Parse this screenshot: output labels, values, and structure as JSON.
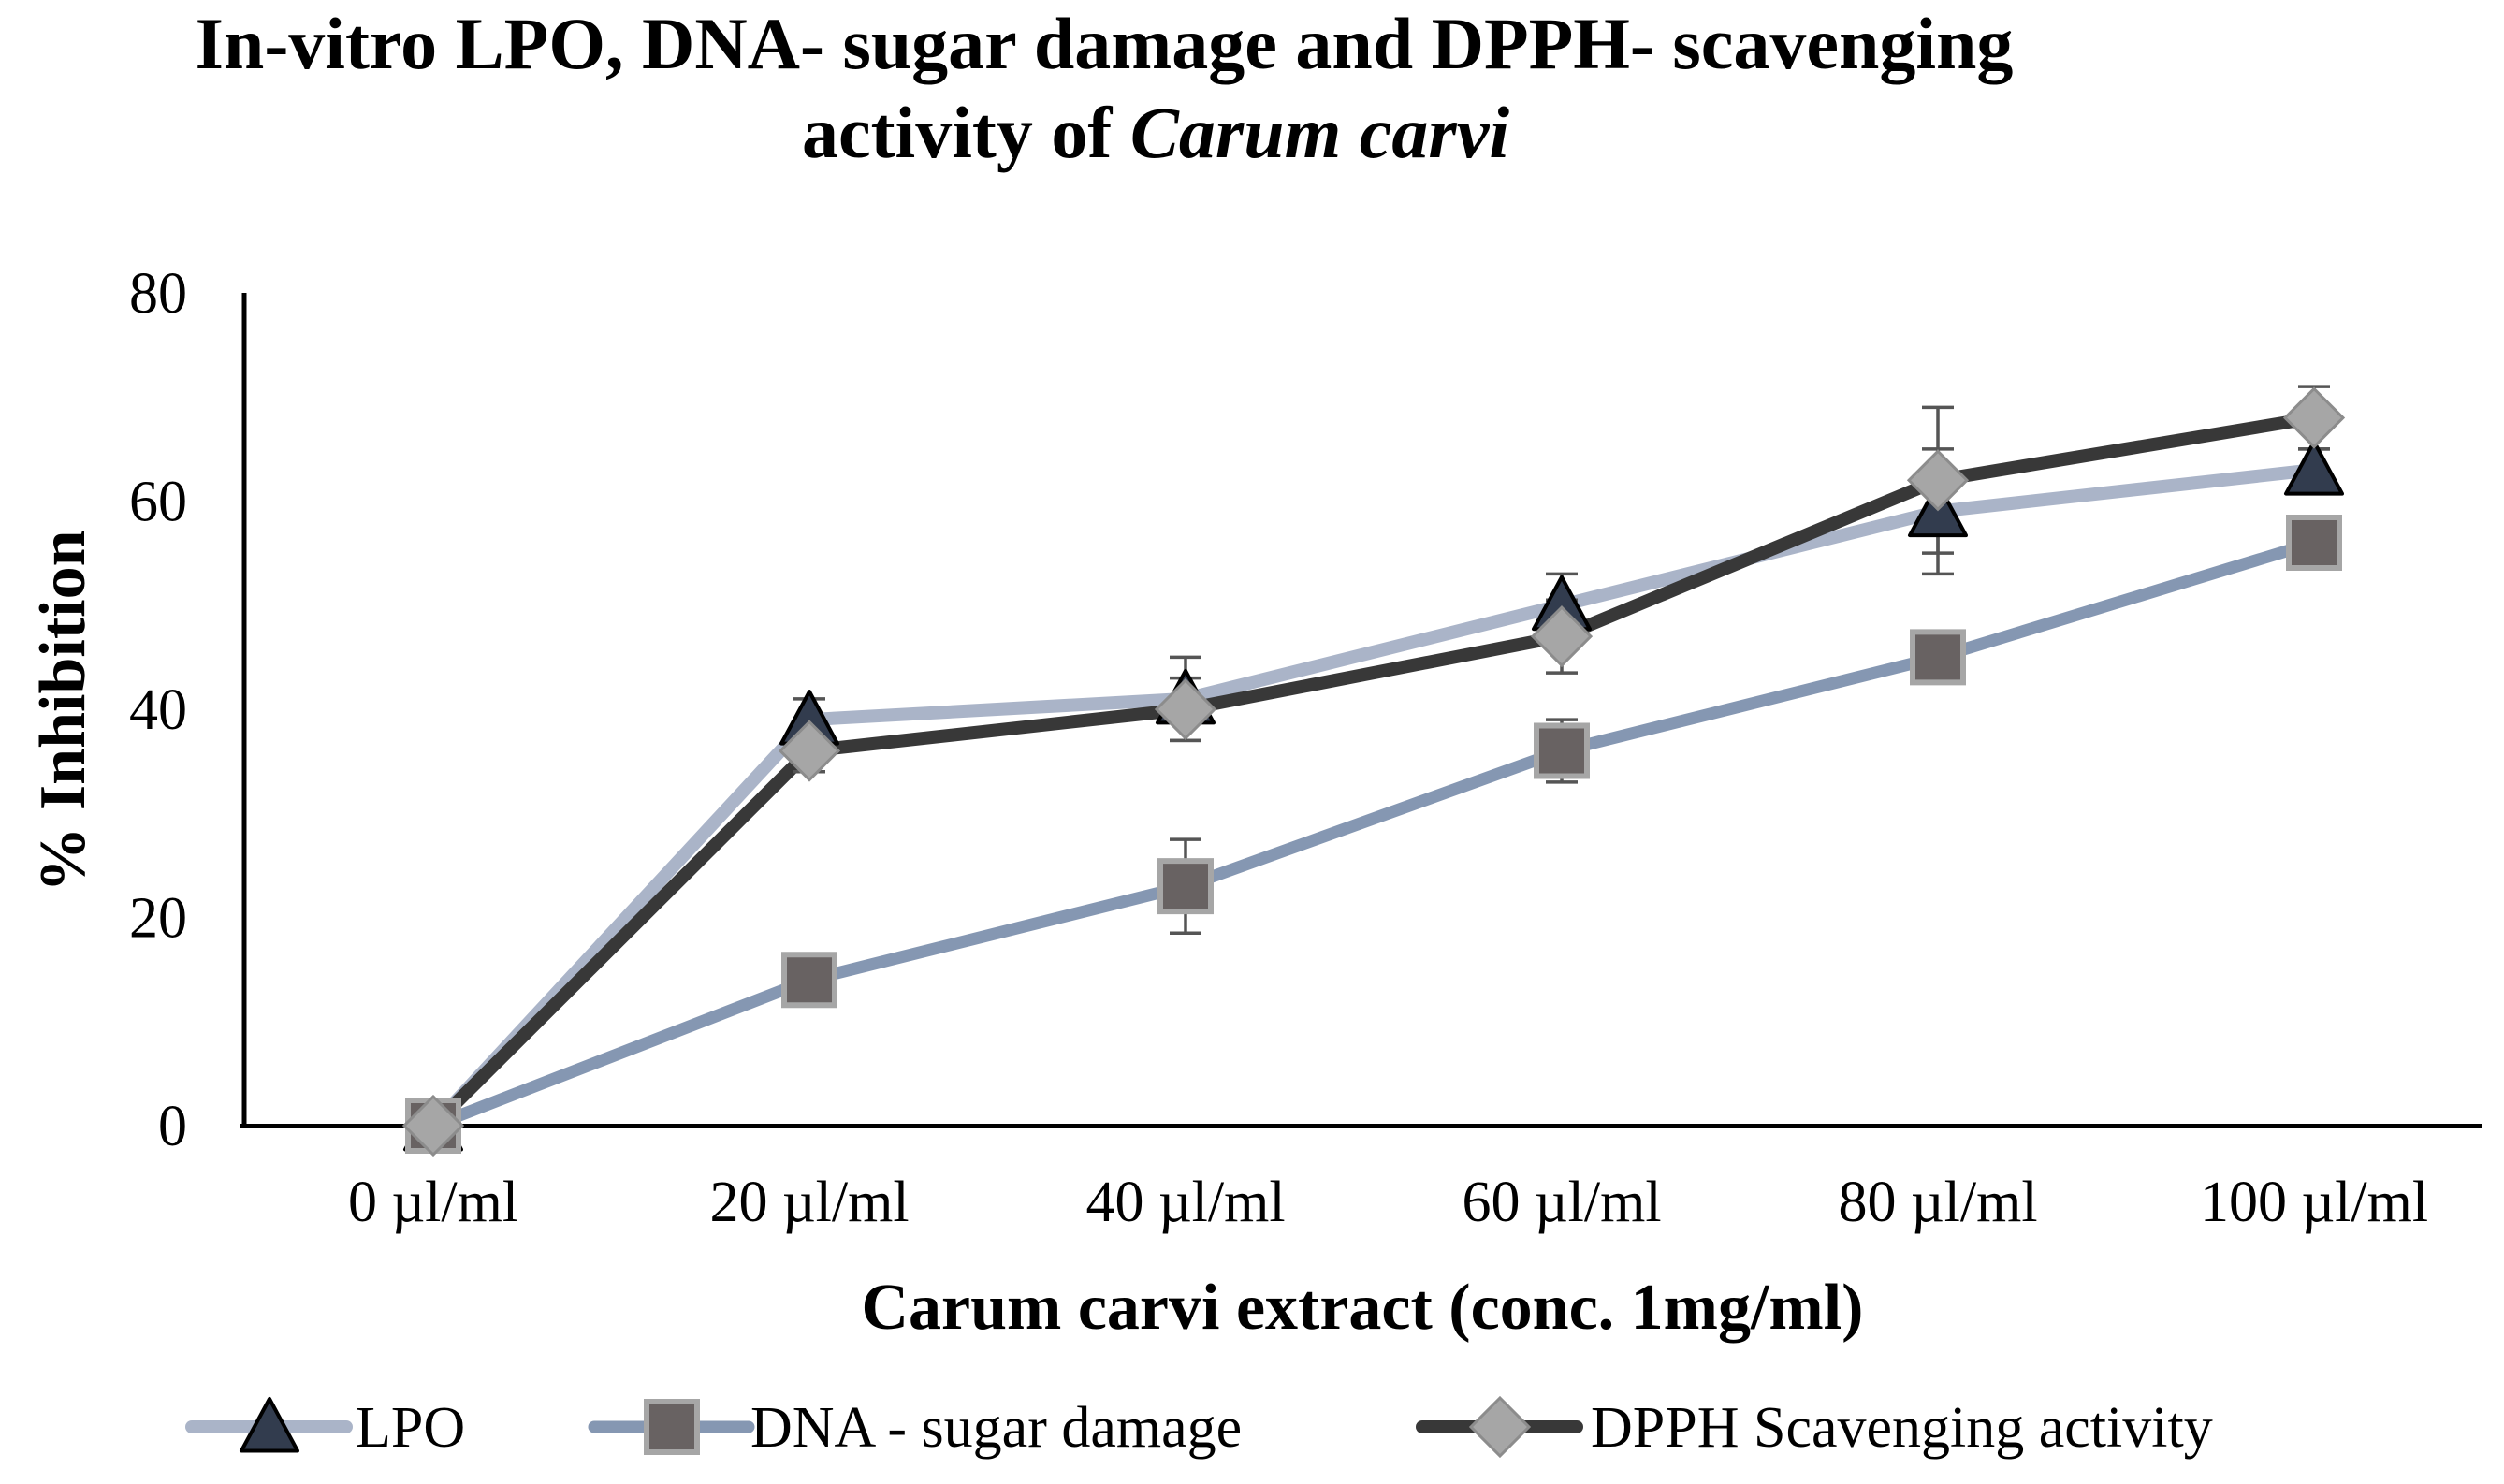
{
  "chart_data": {
    "type": "line",
    "title": {
      "line1": "In-vitro LPO, DNA- sugar damage and DPPH- scavenging",
      "line2_prefix": "activity of ",
      "line2_italic": "Carum carvi"
    },
    "xlabel": "Carum carvi extract (conc. 1mg/ml)",
    "ylabel": "% Inhibition",
    "ylim": [
      0,
      80
    ],
    "yticks": [
      0,
      20,
      40,
      60,
      80
    ],
    "grid": false,
    "legend_position": "bottom",
    "categories": [
      "0 µl/ml",
      "20 µl/ml",
      "40 µl/ml",
      "60 µl/ml",
      "80 µl/ml",
      "100 µl/ml"
    ],
    "series": [
      {
        "name": "LPO",
        "marker": "triangle",
        "line_color": "#aab4c8",
        "marker_fill": "#323c4e",
        "marker_stroke": "#000000",
        "values": [
          0,
          39,
          41,
          50,
          59,
          63
        ],
        "errors": [
          0,
          2,
          4,
          3,
          6,
          2
        ]
      },
      {
        "name": "DNA - sugar damage",
        "marker": "square",
        "line_color": "#8597b2",
        "marker_fill": "#686262",
        "marker_stroke": "#a6a6a6",
        "values": [
          0,
          14,
          23,
          36,
          45,
          56
        ],
        "errors": [
          0,
          1,
          4.5,
          3,
          1,
          1.5
        ]
      },
      {
        "name": "DPPH Scavenging activity",
        "marker": "diamond",
        "line_color": "#383838",
        "marker_fill": "#a6a6a6",
        "marker_stroke": "#8c8c8c",
        "values": [
          0,
          36,
          40,
          47,
          62,
          68
        ],
        "errors": [
          0,
          2,
          3,
          3.5,
          7,
          3
        ]
      }
    ]
  }
}
